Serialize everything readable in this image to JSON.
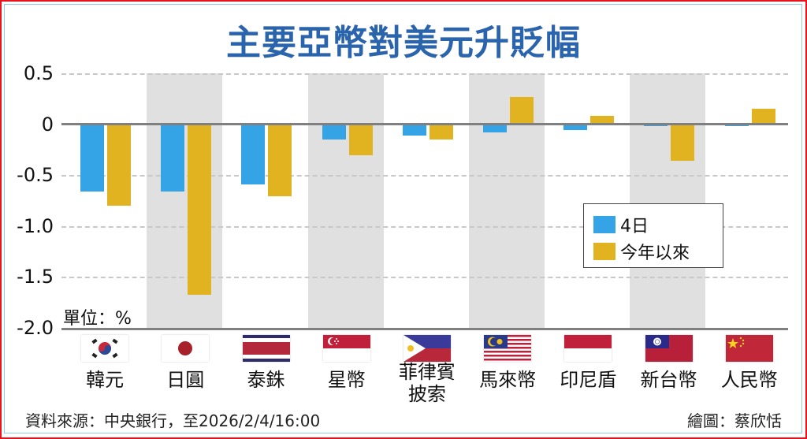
{
  "title": "主要亞幣對美元升貶幅",
  "unit_label": "單位：%",
  "source": "資料來源：中央銀行，至2026/2/4/16:00",
  "credit": "繪圖：蔡欣恬",
  "legend": [
    {
      "label": "4日",
      "color": "#34a4e6"
    },
    {
      "label": "今年以來",
      "color": "#e2b320"
    }
  ],
  "y_ticks": [
    "0.5",
    "0",
    "-0.5",
    "-1.0",
    "-1.5",
    "-2.0"
  ],
  "currencies": [
    {
      "label": "韓元",
      "flag": "korea-flag"
    },
    {
      "label": "日圓",
      "flag": "japan-flag"
    },
    {
      "label": "泰銖",
      "flag": "thailand-flag"
    },
    {
      "label": "星幣",
      "flag": "singapore-flag"
    },
    {
      "label": "菲律賓披索",
      "line1": "菲律賓",
      "line2": "披索",
      "flag": "philippines-flag"
    },
    {
      "label": "馬來幣",
      "flag": "malaysia-flag"
    },
    {
      "label": "印尼盾",
      "flag": "indonesia-flag"
    },
    {
      "label": "新台幣",
      "flag": "taiwan-flag"
    },
    {
      "label": "人民幣",
      "flag": "china-flag"
    }
  ],
  "chart_data": {
    "type": "bar",
    "title": "主要亞幣對美元升貶幅",
    "xlabel": "",
    "ylabel": "單位：%",
    "ylim": [
      -2.0,
      0.5
    ],
    "yticks": [
      0.5,
      0,
      -0.5,
      -1.0,
      -1.5,
      -2.0
    ],
    "grid": true,
    "legend_position": "right-middle",
    "categories": [
      "韓元",
      "日圓",
      "泰銖",
      "星幣",
      "菲律賓披索",
      "馬來幣",
      "印尼盾",
      "新台幣",
      "人民幣"
    ],
    "series": [
      {
        "name": "4日",
        "color": "#34a4e6",
        "values": [
          -0.66,
          -0.66,
          -0.59,
          -0.15,
          -0.11,
          -0.08,
          -0.06,
          -0.02,
          -0.02
        ]
      },
      {
        "name": "今年以來",
        "color": "#e2b320",
        "values": [
          -0.8,
          -1.68,
          -0.71,
          -0.31,
          -0.15,
          0.27,
          0.08,
          -0.36,
          0.15
        ]
      }
    ]
  }
}
